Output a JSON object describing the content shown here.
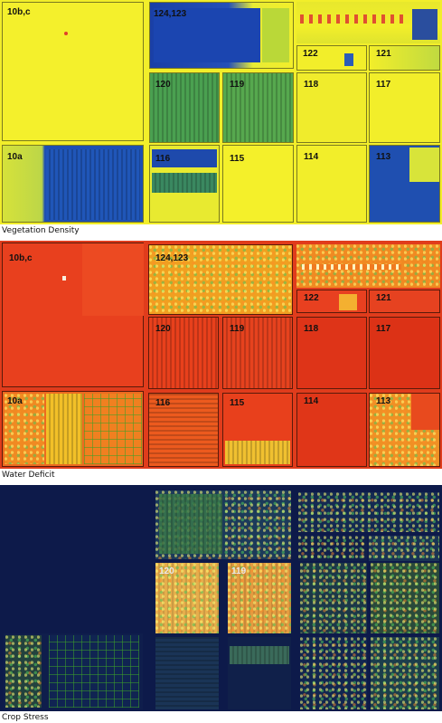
{
  "panels": [
    {
      "caption": "Vegetation Density",
      "fields": {
        "f10bc": "10b,c",
        "f124": "124,123",
        "f122": "122",
        "f121": "121",
        "f120": "120",
        "f119": "119",
        "f118": "118",
        "f117": "117",
        "f10a": "10a",
        "f116": "116",
        "f115": "115",
        "f114": "114",
        "f113": "113"
      }
    },
    {
      "caption": "Water Deficit",
      "fields": {
        "f10bc": "10b,c",
        "f124": "124,123",
        "f122": "122",
        "f121": "121",
        "f120": "120",
        "f119": "119",
        "f118": "118",
        "f117": "117",
        "f10a": "10a",
        "f116": "116",
        "f115": "115",
        "f114": "114",
        "f113": "113"
      }
    },
    {
      "caption": "Crop Stress",
      "fields": {
        "f120": "120",
        "f119": "119"
      }
    }
  ],
  "colors": {
    "vegetation_low": "#f2ee2a",
    "vegetation_high": "#1d4fb3",
    "deficit_high": "#e8341c",
    "deficit_mid": "#f0a020",
    "stress_background": "#0d1a4a",
    "stress_hot": "#f0d060"
  }
}
